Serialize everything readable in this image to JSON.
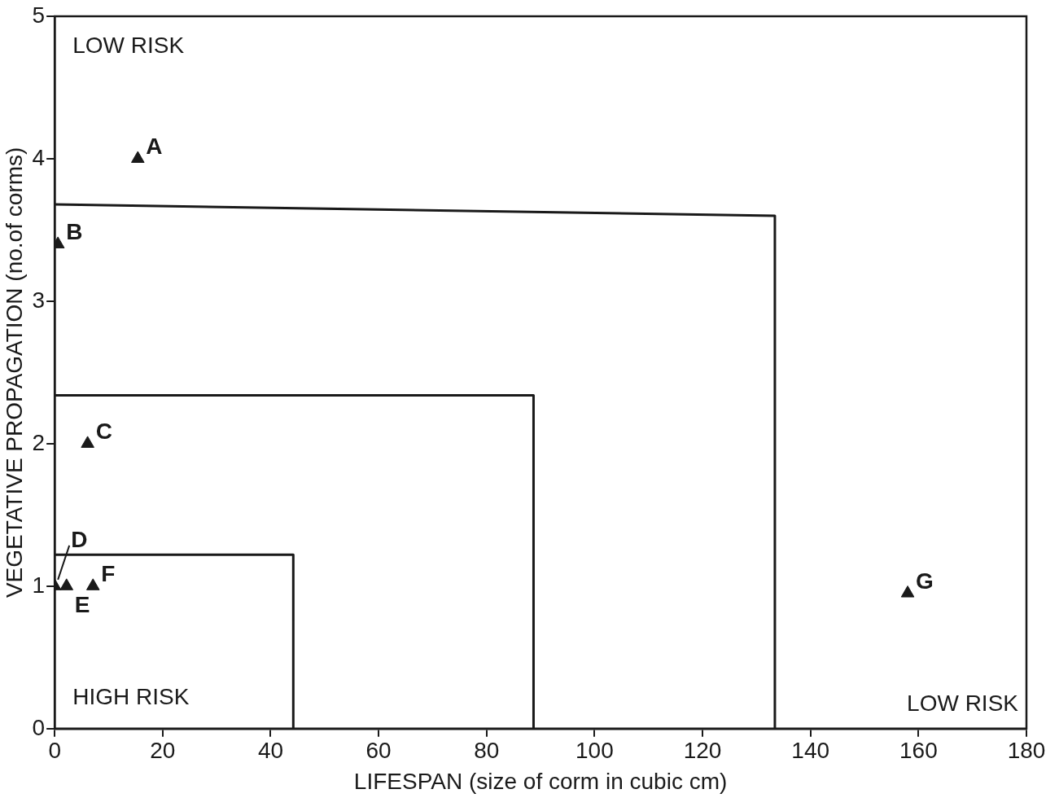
{
  "chart_data": {
    "type": "scatter",
    "xlabel": "LIFESPAN (size of corm in cubic cm)",
    "ylabel": "VEGETATIVE PROPAGATION (no.of corms)",
    "xlim": [
      0,
      180
    ],
    "xticks": [
      0,
      20,
      40,
      60,
      80,
      100,
      120,
      140,
      160,
      180
    ],
    "ylim": [
      0,
      5
    ],
    "yticks": [
      0,
      1,
      2,
      3,
      4,
      5
    ],
    "grid": false,
    "legend": false,
    "marker": "triangle",
    "series": [
      {
        "type": "scatter",
        "color": "#1a1a1a",
        "x": [
          15.4,
          0.6,
          6.1,
          0,
          2.2,
          7.1,
          158
        ],
        "values": [
          4.0,
          3.4,
          2.0,
          1.0,
          1.0,
          1.0,
          0.95
        ],
        "value_labels": [
          "A",
          "B",
          "C",
          "D",
          "E",
          "F",
          "G"
        ]
      },
      {
        "type": "line",
        "color": "#1a1a1a",
        "marker": "none",
        "x": [
          0,
          44.2,
          44.2
        ],
        "values": [
          1.22,
          1.22,
          0
        ]
      },
      {
        "type": "line",
        "color": "#1a1a1a",
        "marker": "none",
        "x": [
          0,
          88.7,
          88.7
        ],
        "values": [
          2.34,
          2.34,
          0
        ]
      },
      {
        "type": "line",
        "color": "#1a1a1a",
        "marker": "none",
        "x": [
          0,
          133.4,
          133.4
        ],
        "values": [
          3.68,
          3.6,
          0
        ]
      }
    ],
    "annotations": [
      "LOW RISK",
      "HIGH RISK",
      "LOW RISK"
    ]
  }
}
